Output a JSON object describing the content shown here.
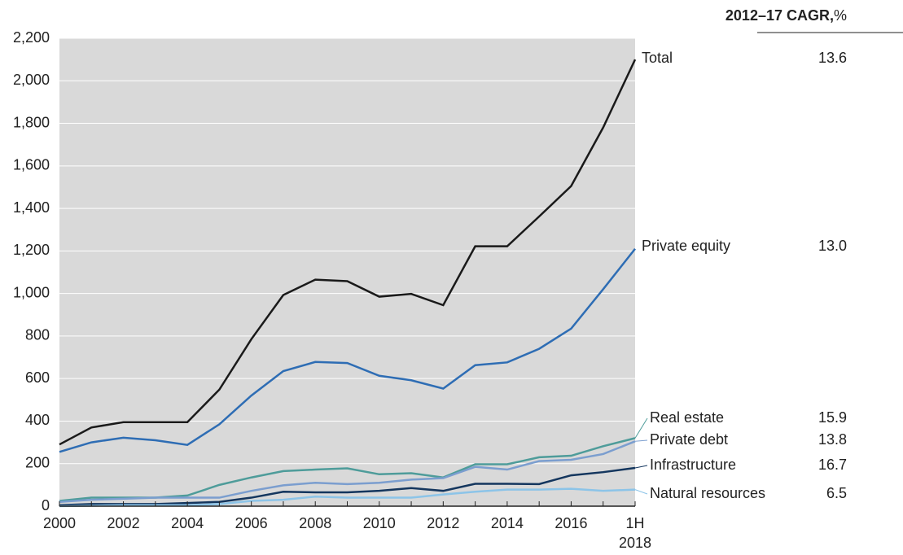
{
  "chart_data": {
    "type": "line",
    "cagr_header": "2012–17 CAGR,",
    "cagr_unit": "%",
    "categories": [
      "2000",
      null,
      "2002",
      null,
      "2004",
      null,
      "2006",
      null,
      "2008",
      null,
      "2010",
      null,
      "2012",
      null,
      "2014",
      null,
      "2016",
      null,
      "1H 2018"
    ],
    "ylim": [
      0,
      2200
    ],
    "yticks": [
      0,
      200,
      400,
      600,
      800,
      {
        "value": 1000,
        "label": "1,000"
      },
      {
        "value": 1200,
        "label": "1,200"
      },
      {
        "value": 1400,
        "label": "1,400"
      },
      {
        "value": 1600,
        "label": "1,600"
      },
      {
        "value": 1800,
        "label": "1,800"
      },
      {
        "value": 2000,
        "label": "2,000"
      },
      {
        "value": 2200,
        "label": "2,200"
      }
    ],
    "grid": true,
    "series": [
      {
        "name": "Total",
        "color": "#1a1a1a",
        "cagr": 13.6,
        "values": [
          290,
          370,
          395,
          395,
          395,
          548,
          785,
          993,
          1065,
          1058,
          985,
          998,
          945,
          1222,
          1222,
          1362,
          1505,
          1780,
          2100
        ]
      },
      {
        "name": "Private equity",
        "color": "#2e6db4",
        "cagr": 13.0,
        "cagr_label": "13.0",
        "values": [
          255,
          300,
          322,
          310,
          288,
          385,
          520,
          635,
          678,
          673,
          613,
          592,
          553,
          663,
          676,
          740,
          835,
          1020,
          1210
        ]
      },
      {
        "name": "Real estate",
        "color": "#4e9c9a",
        "cagr": 15.9,
        "values": [
          25,
          40,
          40,
          40,
          50,
          100,
          135,
          165,
          172,
          178,
          150,
          155,
          135,
          197,
          197,
          230,
          237,
          282,
          320
        ]
      },
      {
        "name": "Private debt",
        "color": "#7b9ecf",
        "cagr": 13.8,
        "values": [
          20,
          30,
          35,
          40,
          40,
          40,
          72,
          98,
          110,
          104,
          110,
          125,
          132,
          185,
          172,
          212,
          218,
          245,
          305
        ]
      },
      {
        "name": "Infrastructure",
        "color": "#14365e",
        "cagr": 16.7,
        "values": [
          5,
          10,
          10,
          10,
          15,
          20,
          40,
          68,
          65,
          65,
          72,
          85,
          72,
          105,
          105,
          104,
          145,
          160,
          180
        ]
      },
      {
        "name": "Natural resources",
        "color": "#8cc4e8",
        "cagr": 6.5,
        "values": [
          0,
          2,
          5,
          5,
          5,
          10,
          25,
          30,
          45,
          40,
          40,
          40,
          55,
          68,
          78,
          78,
          82,
          72,
          78
        ]
      }
    ]
  }
}
